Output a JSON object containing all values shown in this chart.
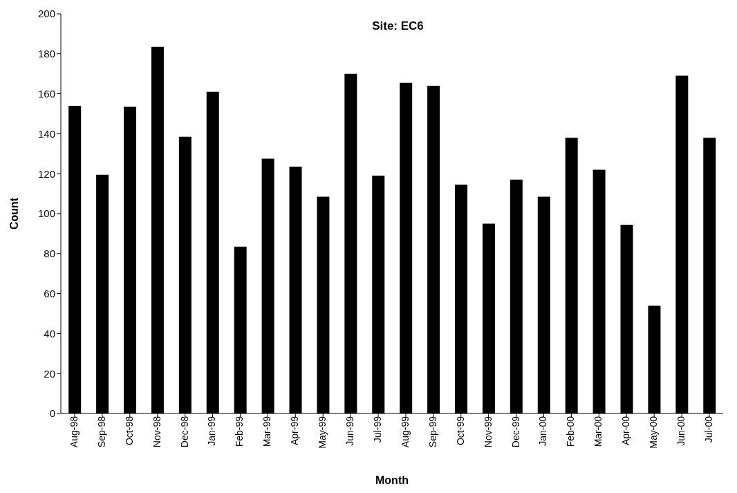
{
  "chart_data": {
    "type": "bar",
    "title": "Site: EC6",
    "xlabel": "Month",
    "ylabel": "Count",
    "categories": [
      "Aug-98",
      "Sep-98",
      "Oct-98",
      "Nov-98",
      "Dec-98",
      "Jan-99",
      "Feb-99",
      "Mar-99",
      "Apr-99",
      "May-99",
      "Jun-99",
      "Jul-99",
      "Aug-99",
      "Sep-99",
      "Oct-99",
      "Nov-99",
      "Dec-99",
      "Jan-00",
      "Feb-00",
      "Mar-00",
      "Apr-00",
      "May-00",
      "Jun-00",
      "Jul-00"
    ],
    "values": [
      154,
      119.5,
      153.5,
      183.5,
      138.5,
      161,
      83.5,
      127.5,
      123.5,
      108.5,
      170,
      119,
      165.5,
      164,
      114.5,
      95,
      117,
      108.5,
      138,
      122,
      94.5,
      54,
      169,
      138
    ],
    "color": "#000000",
    "ylim": [
      0,
      200
    ],
    "yticks": [
      0,
      20,
      40,
      60,
      80,
      100,
      120,
      140,
      160,
      180,
      200
    ],
    "grid": false,
    "legend": false
  }
}
